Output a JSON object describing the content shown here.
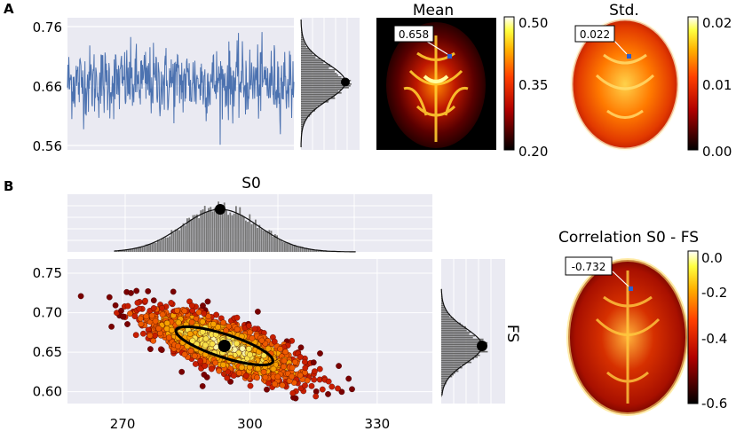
{
  "panels": {
    "a": "A",
    "b": "B"
  },
  "chart_data": [
    {
      "type": "line",
      "panel": "A",
      "yticks": [
        "0.76",
        "0.66",
        "0.56"
      ],
      "ylim": [
        0.545,
        0.765
      ],
      "series_mean": 0.658,
      "series_spread": 0.03,
      "n_points": 520,
      "color": "#4c72b0",
      "marginal": {
        "type": "histogram",
        "orientation": "horizontal",
        "peak_marker": 0.658,
        "color": "#555555"
      }
    },
    {
      "type": "heatmap",
      "panel": "A",
      "title": "Mean",
      "annotation": "0.658",
      "colorbar_ticks": [
        "0.50",
        "0.35",
        "0.20"
      ],
      "colormap": "hot"
    },
    {
      "type": "heatmap",
      "panel": "A",
      "title": "Std.",
      "annotation": "0.022",
      "colorbar_ticks": [
        "0.02",
        "0.01",
        "0.00"
      ],
      "colormap": "hot"
    },
    {
      "type": "histogram",
      "panel": "B",
      "title": "S0",
      "mean": 293,
      "sd": 9,
      "color": "#555555"
    },
    {
      "type": "scatter",
      "panel": "B",
      "xticks": [
        "270",
        "300",
        "330"
      ],
      "yticks": [
        "0.75",
        "0.70",
        "0.65",
        "0.60"
      ],
      "xlim": [
        257,
        343
      ],
      "ylim": [
        0.585,
        0.768
      ],
      "center": {
        "x": 294,
        "y": 0.658
      },
      "correlation": -0.732,
      "n_points": 1800,
      "ellipse": {
        "cx": 294,
        "cy": 0.658,
        "rx_data": 12,
        "tilt": "negative"
      },
      "cmap": [
        "#7a0000",
        "#c81e00",
        "#ee5a00",
        "#f7a100",
        "#f9e24a",
        "#fbf7a8"
      ]
    },
    {
      "type": "histogram",
      "panel": "B",
      "orientation": "horizontal",
      "ylabel": "FS",
      "mean": 0.658,
      "color": "#555555"
    },
    {
      "type": "heatmap",
      "panel": "B",
      "title": "Correlation S0 - FS",
      "annotation": "-0.732",
      "colorbar_ticks": [
        "0.0",
        "-0.2",
        "-0.4",
        "-0.6"
      ],
      "colormap": "hot"
    }
  ]
}
